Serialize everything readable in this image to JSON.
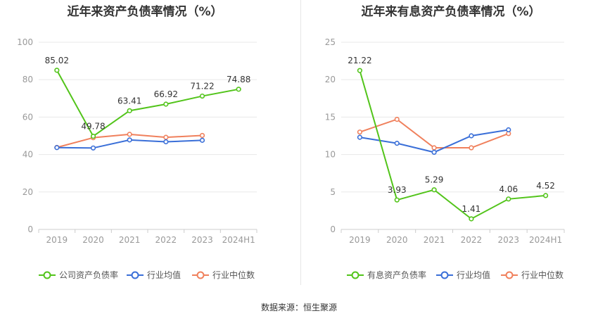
{
  "charts": [
    {
      "title": "近年来资产负债率情况（%）",
      "legend": [
        "公司资产负债率",
        "行业均值",
        "行业中位数"
      ]
    },
    {
      "title": "近年来有息资产负债率情况（%）",
      "legend": [
        "有息资产负债率",
        "行业均值",
        "行业中位数"
      ]
    }
  ],
  "colors": {
    "company": "#52c41a",
    "avg": "#3a6fd8",
    "median": "#f0805c",
    "grid": "#e8e8e8",
    "axis": "#999999"
  },
  "footer": "数据来源：恒生聚源",
  "chart_data": [
    {
      "type": "line",
      "title": "近年来资产负债率情况（%）",
      "categories": [
        "2019",
        "2020",
        "2021",
        "2022",
        "2023",
        "2024H1"
      ],
      "ylim": [
        0,
        100
      ],
      "yticks": [
        0,
        20,
        40,
        60,
        80,
        100
      ],
      "grid": true,
      "legend_position": "bottom",
      "series": [
        {
          "name": "公司资产负债率",
          "values": [
            85.02,
            49.78,
            63.41,
            66.92,
            71.22,
            74.88
          ],
          "labels": true
        },
        {
          "name": "行业均值",
          "values": [
            43.7,
            43.5,
            47.8,
            46.8,
            47.6,
            null
          ]
        },
        {
          "name": "行业中位数",
          "values": [
            43.8,
            49.0,
            50.8,
            49.2,
            50.2,
            null
          ]
        }
      ]
    },
    {
      "type": "line",
      "title": "近年来有息资产负债率情况（%）",
      "categories": [
        "2019",
        "2020",
        "2021",
        "2022",
        "2023",
        "2024H1"
      ],
      "ylim": [
        0,
        25
      ],
      "yticks": [
        0,
        5,
        10,
        15,
        20,
        25
      ],
      "grid": true,
      "legend_position": "bottom",
      "series": [
        {
          "name": "有息资产负债率",
          "values": [
            21.22,
            3.93,
            5.29,
            1.41,
            4.06,
            4.52
          ],
          "labels": true
        },
        {
          "name": "行业均值",
          "values": [
            12.3,
            11.5,
            10.3,
            12.5,
            13.3,
            null
          ]
        },
        {
          "name": "行业中位数",
          "values": [
            13.0,
            14.7,
            10.9,
            10.9,
            12.8,
            null
          ]
        }
      ]
    }
  ]
}
